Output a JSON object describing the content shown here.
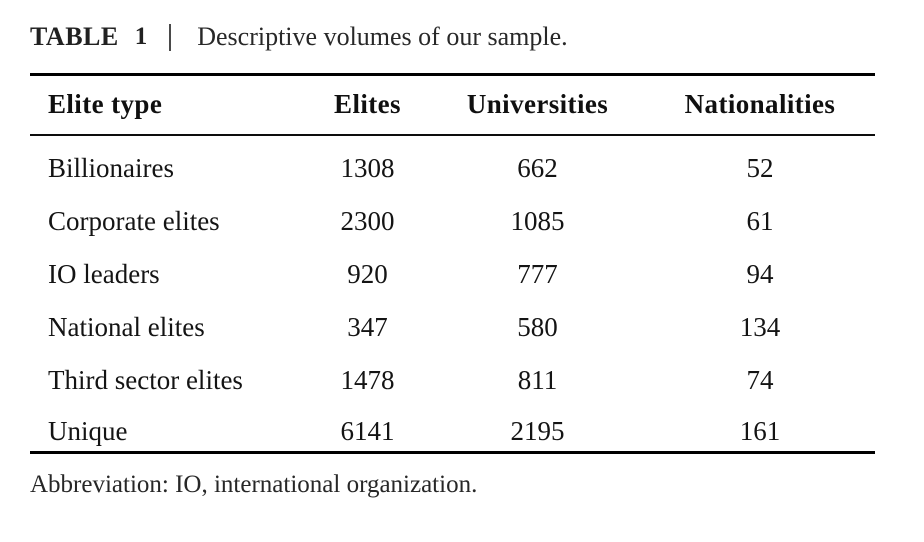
{
  "title": {
    "label": "TABLE",
    "number": "1",
    "caption": "Descriptive volumes of our sample."
  },
  "table": {
    "headers": [
      "Elite type",
      "Elites",
      "Universities",
      "Nationalities"
    ],
    "rows": [
      [
        "Billionaires",
        "1308",
        "662",
        "52"
      ],
      [
        "Corporate elites",
        "2300",
        "1085",
        "61"
      ],
      [
        "IO leaders",
        "920",
        "777",
        "94"
      ],
      [
        "National elites",
        "347",
        "580",
        "134"
      ],
      [
        "Third sector elites",
        "1478",
        "811",
        "74"
      ],
      [
        "Unique",
        "6141",
        "2195",
        "161"
      ]
    ]
  },
  "footnote": "Abbreviation: IO, international organization.",
  "colors": {
    "text": "#141414",
    "title_text": "#212121",
    "rule_heavy": "#000000",
    "rule_light": "#0d0d0d",
    "separator": "#4a4a4a",
    "background": "#ffffff"
  }
}
